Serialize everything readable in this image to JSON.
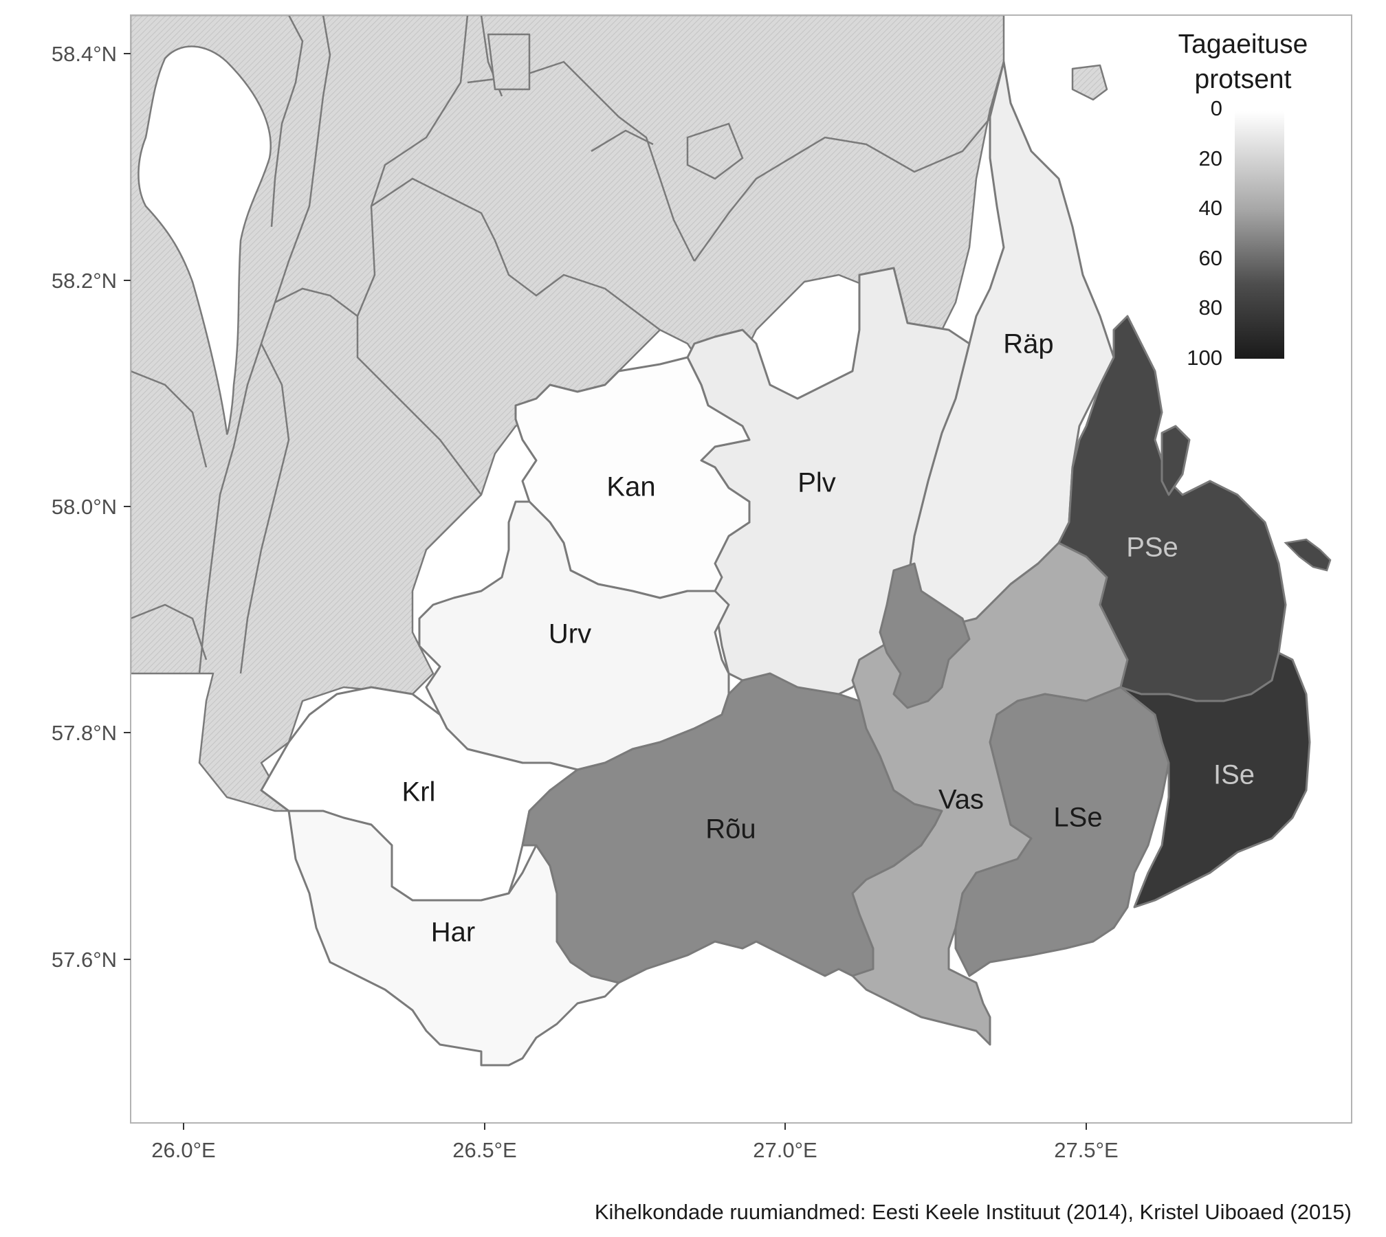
{
  "legend": {
    "title_line1": "Tagaeituse",
    "title_line2": "protsent",
    "ticks": [
      "0",
      "20",
      "40",
      "60",
      "80",
      "100"
    ],
    "scale_range": [
      0,
      100
    ],
    "color_low": "#ffffff",
    "color_high": "#1a1a1a"
  },
  "axes": {
    "y_ticks": [
      "58.4°N",
      "58.2°N",
      "58.0°N",
      "57.8°N",
      "57.6°N"
    ],
    "x_ticks": [
      "26.0°E",
      "26.5°E",
      "27.0°E",
      "27.5°E"
    ]
  },
  "parishes": [
    {
      "code": "Kan",
      "percent": 1,
      "fill": "#fdfdfd",
      "label_color": "#1a1a1a"
    },
    {
      "code": "Plv",
      "percent": 8,
      "fill": "#ececec",
      "label_color": "#1a1a1a"
    },
    {
      "code": "Räp",
      "percent": 7,
      "fill": "#eeeeee",
      "label_color": "#1a1a1a"
    },
    {
      "code": "Urv",
      "percent": 3,
      "fill": "#f6f6f6",
      "label_color": "#1a1a1a"
    },
    {
      "code": "Krl",
      "percent": 0,
      "fill": "#ffffff",
      "label_color": "#1a1a1a"
    },
    {
      "code": "Har",
      "percent": 2,
      "fill": "#f8f8f8",
      "label_color": "#1a1a1a"
    },
    {
      "code": "Rõu",
      "percent": 50,
      "fill": "#8a8a8a",
      "label_color": "#1a1a1a"
    },
    {
      "code": "Vas",
      "percent": 35,
      "fill": "#adadad",
      "label_color": "#1a1a1a"
    },
    {
      "code": "LSe",
      "percent": 50,
      "fill": "#8a8a8a",
      "label_color": "#1a1a1a"
    },
    {
      "code": "PSe",
      "percent": 80,
      "fill": "#484848",
      "label_color": "#c8c8c8"
    },
    {
      "code": "ISe",
      "percent": 88,
      "fill": "#383838",
      "label_color": "#c8c8c8"
    }
  ],
  "caption": "Kihelkondade ruumiandmed: Eesti Keele Instituut (2014), Kristel Uiboaed (2015)"
}
